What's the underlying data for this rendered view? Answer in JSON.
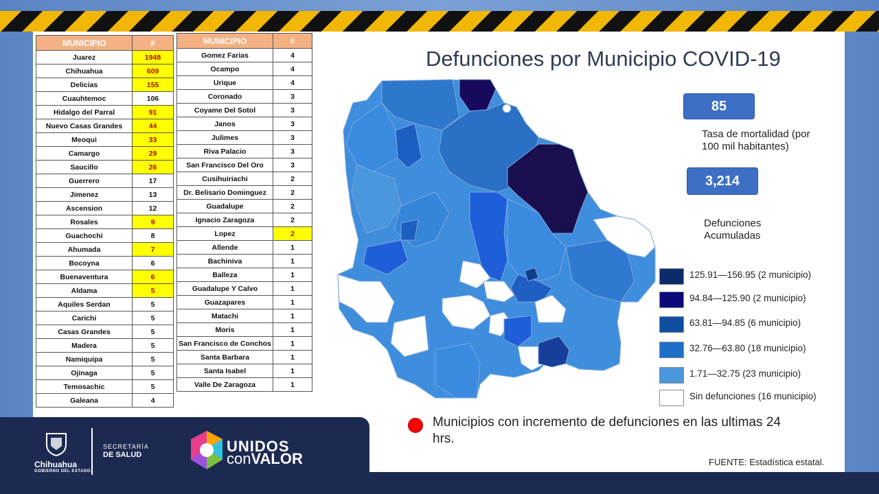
{
  "title": "Defunciones por Municipio COVID-19",
  "colors": {
    "table_header": "#f4b183",
    "highlight": "#ffff00",
    "highlight_text": "#c00000",
    "stat_box": "#3d6fc4",
    "footer": "#1c2a52"
  },
  "table_left": {
    "headers": [
      "MUNICIPIO",
      "#"
    ],
    "rows": [
      {
        "name": "Juarez",
        "value": "1948",
        "highlight": true
      },
      {
        "name": "Chihuahua",
        "value": "609",
        "highlight": true
      },
      {
        "name": "Delicias",
        "value": "155",
        "highlight": true
      },
      {
        "name": "Cuauhtemoc",
        "value": "106",
        "highlight": false
      },
      {
        "name": "Hidalgo del Parral",
        "value": "91",
        "highlight": true
      },
      {
        "name": "Nuevo Casas Grandes",
        "value": "44",
        "highlight": true
      },
      {
        "name": "Meoqui",
        "value": "33",
        "highlight": true
      },
      {
        "name": "Camargo",
        "value": "29",
        "highlight": true
      },
      {
        "name": "Saucillo",
        "value": "26",
        "highlight": true
      },
      {
        "name": "Guerrero",
        "value": "17",
        "highlight": false
      },
      {
        "name": "Jimenez",
        "value": "13",
        "highlight": false
      },
      {
        "name": "Ascension",
        "value": "12",
        "highlight": false
      },
      {
        "name": "Rosales",
        "value": "9",
        "highlight": true
      },
      {
        "name": "Guachochi",
        "value": "8",
        "highlight": false
      },
      {
        "name": "Ahumada",
        "value": "7",
        "highlight": true
      },
      {
        "name": "Bocoyna",
        "value": "6",
        "highlight": false
      },
      {
        "name": "Buenaventura",
        "value": "6",
        "highlight": true
      },
      {
        "name": "Aldama",
        "value": "5",
        "highlight": true
      },
      {
        "name": "Aquiles Serdan",
        "value": "5",
        "highlight": false
      },
      {
        "name": "Carichi",
        "value": "5",
        "highlight": false
      },
      {
        "name": "Casas Grandes",
        "value": "5",
        "highlight": false
      },
      {
        "name": "Madera",
        "value": "5",
        "highlight": false
      },
      {
        "name": "Namiquipa",
        "value": "5",
        "highlight": false
      },
      {
        "name": "Ojinaga",
        "value": "5",
        "highlight": false
      },
      {
        "name": "Temosachic",
        "value": "5",
        "highlight": false
      },
      {
        "name": "Galeana",
        "value": "4",
        "highlight": false
      }
    ]
  },
  "table_right": {
    "headers": [
      "MUNICIPIO",
      "#"
    ],
    "rows": [
      {
        "name": "Gomez Farias",
        "value": "4",
        "highlight": false
      },
      {
        "name": "Ocampo",
        "value": "4",
        "highlight": false
      },
      {
        "name": "Urique",
        "value": "4",
        "highlight": false
      },
      {
        "name": "Coronado",
        "value": "3",
        "highlight": false
      },
      {
        "name": "Coyame Del Sotol",
        "value": "3",
        "highlight": false
      },
      {
        "name": "Janos",
        "value": "3",
        "highlight": false
      },
      {
        "name": "Julimes",
        "value": "3",
        "highlight": false
      },
      {
        "name": "Riva Palacio",
        "value": "3",
        "highlight": false
      },
      {
        "name": "San Francisco Del Oro",
        "value": "3",
        "highlight": false
      },
      {
        "name": "Cusihuiriachi",
        "value": "2",
        "highlight": false
      },
      {
        "name": "Dr. Belisario Dominguez",
        "value": "2",
        "highlight": false
      },
      {
        "name": "Guadalupe",
        "value": "2",
        "highlight": false
      },
      {
        "name": "Ignacio Zaragoza",
        "value": "2",
        "highlight": false
      },
      {
        "name": "Lopez",
        "value": "2",
        "highlight": true
      },
      {
        "name": "Allende",
        "value": "1",
        "highlight": false
      },
      {
        "name": "Bachiniva",
        "value": "1",
        "highlight": false
      },
      {
        "name": "Balleza",
        "value": "1",
        "highlight": false
      },
      {
        "name": "Guadalupe Y Calvo",
        "value": "1",
        "highlight": false
      },
      {
        "name": "Guazapares",
        "value": "1",
        "highlight": false
      },
      {
        "name": "Matachi",
        "value": "1",
        "highlight": false
      },
      {
        "name": "Moris",
        "value": "1",
        "highlight": false
      },
      {
        "name": "San Francisco de Conchos",
        "value": "1",
        "highlight": false
      },
      {
        "name": "Santa Barbara",
        "value": "1",
        "highlight": false
      },
      {
        "name": "Santa Isabel",
        "value": "1",
        "highlight": false
      },
      {
        "name": "Valle De Zaragoza",
        "value": "1",
        "highlight": false
      }
    ]
  },
  "stats": {
    "rate_value": "85",
    "rate_label": "Tasa de mortalidad (por 100 mil habitantes)",
    "total_value": "3,214",
    "total_label": "Defunciones Acumuladas"
  },
  "legend": [
    {
      "color": "#0d2a6b",
      "label": "125.91—156.95 (2 municipio)"
    },
    {
      "color": "#0a0a7a",
      "label": "94.84—125.90 (2 municipio)"
    },
    {
      "color": "#0f4da0",
      "label": "63.81—94.85 (6 municipio)"
    },
    {
      "color": "#1f6fc8",
      "label": "32.76—63.80 (18 municipio)"
    },
    {
      "color": "#4a97dd",
      "label": "1.71—32.75 (23 municipio)"
    },
    {
      "color": "#ffffff",
      "label": "Sin defunciones (16 municipio)"
    }
  ],
  "note": "Municipios  con incremento de defunciones en las ultimas 24 hrs.",
  "source": "FUENTE: Estadística estatal.",
  "footer": {
    "state_name": "Chihuahua",
    "state_sub": "GOBIERNO DEL ESTADO",
    "secretaria_line1": "SECRETARÍA",
    "secretaria_line2": "DE SALUD",
    "campaign_line1": "UNIDOS",
    "campaign_con": "con",
    "campaign_valor": "VALOR"
  }
}
